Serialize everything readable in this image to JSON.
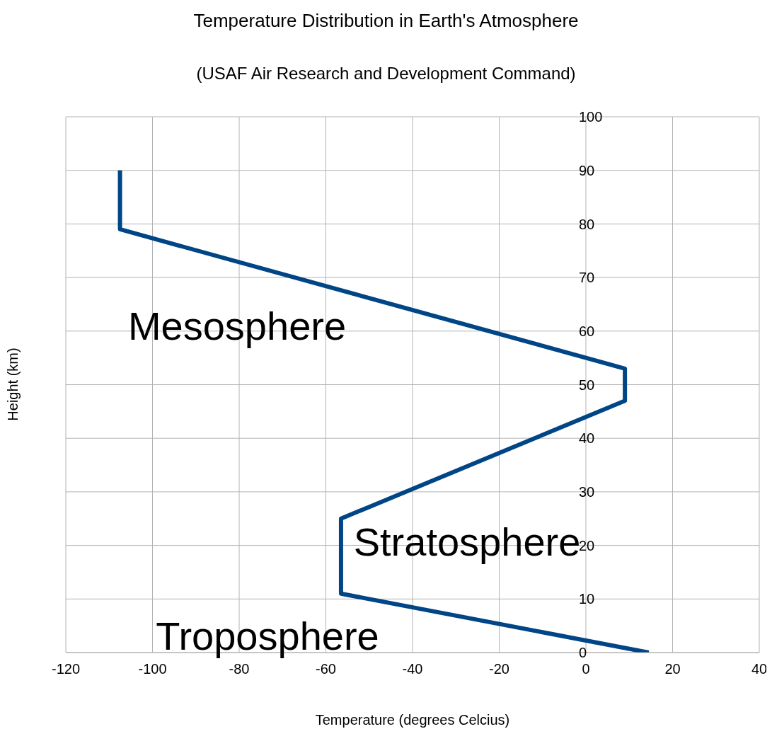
{
  "chart_data": {
    "type": "line",
    "title": "Temperature Distribution in Earth's Atmosphere",
    "subtitle": "(USAF Air Research and Development Command)",
    "xlabel": "Temperature (degrees Celcius)",
    "ylabel": "Height (km)",
    "series": [
      {
        "color": "#004586",
        "x": [
          14.5,
          -56.5,
          -56.5,
          9,
          9,
          -107.5,
          -107.5
        ],
        "values": [
          0,
          11,
          25,
          47,
          53,
          79,
          90
        ]
      }
    ],
    "xlim": [
      -120,
      40
    ],
    "xticks": [
      -120,
      -100,
      -80,
      -60,
      -40,
      -20,
      0,
      20,
      40
    ],
    "ylim": [
      0,
      100
    ],
    "yticks": [
      0,
      10,
      20,
      30,
      40,
      50,
      60,
      70,
      80,
      90,
      100
    ],
    "grid": true,
    "annotations": [
      "Mesosphere",
      "Stratosphere",
      "Troposphere"
    ]
  }
}
